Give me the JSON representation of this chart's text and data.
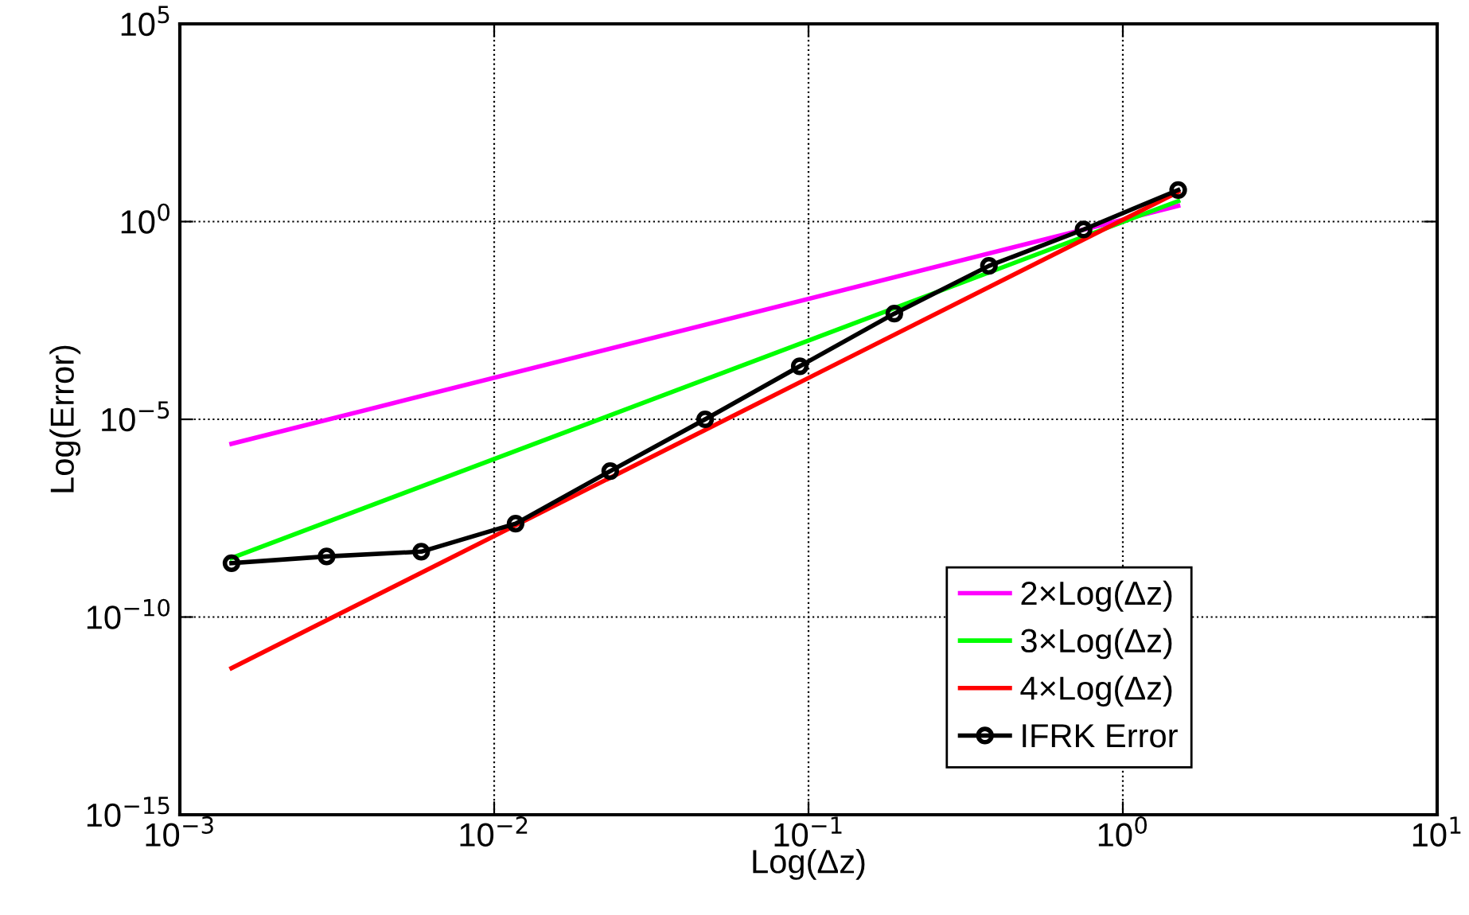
{
  "chart_data": {
    "type": "line",
    "xlabel": "Log(Δz)",
    "ylabel": "Log(Error)",
    "log": "xy",
    "grid": true,
    "legend": "bottom right",
    "xlim": [
      0.001,
      10
    ],
    "ylim": [
      1e-15,
      100000
    ],
    "xticks": [
      {
        "value": 0.001,
        "label": "10$^{−3}$"
      },
      {
        "value": 0.01,
        "label": "10$^{−2}$"
      },
      {
        "value": 0.1,
        "label": "10$^{−1}$"
      },
      {
        "value": 1,
        "label": "10$^{0}$"
      },
      {
        "value": 10,
        "label": "10$^{1}$"
      }
    ],
    "yticks": [
      {
        "value": 1e-15,
        "label": "10$^{−15}$"
      },
      {
        "value": 1e-10,
        "label": "10$^{−10}$"
      },
      {
        "value": 1e-05,
        "label": "10$^{−5}$"
      },
      {
        "value": 1,
        "label": "10$^{0}$"
      },
      {
        "value": 100000,
        "label": "10$^{5}$"
      }
    ],
    "series": [
      {
        "name": "2×Log(Δz)",
        "color": "#ff00ff",
        "marker": "none",
        "x": [
          0.00146,
          1.5
        ],
        "values": [
          2.4e-06,
          2.5
        ]
      },
      {
        "name": "3×Log(Δz)",
        "color": "#00ff00",
        "marker": "none",
        "x": [
          0.00146,
          1.5
        ],
        "values": [
          3.1e-09,
          3.3
        ]
      },
      {
        "name": "4×Log(Δz)",
        "color": "#ff0000",
        "marker": "none",
        "x": [
          0.00146,
          1.5
        ],
        "values": [
          5.1e-12,
          5.6
        ]
      },
      {
        "name": "IFRK Error",
        "color": "#000000",
        "marker": "circle",
        "x": [
          0.00146,
          0.00293,
          0.00586,
          0.0117,
          0.0234,
          0.0469,
          0.0938,
          0.1875,
          0.375,
          0.75,
          1.5
        ],
        "values": [
          2.3e-09,
          3.4e-09,
          4.5e-09,
          2.3e-08,
          4.9e-07,
          1e-05,
          0.00022,
          0.0047,
          0.076,
          0.63,
          6.3
        ]
      }
    ]
  }
}
